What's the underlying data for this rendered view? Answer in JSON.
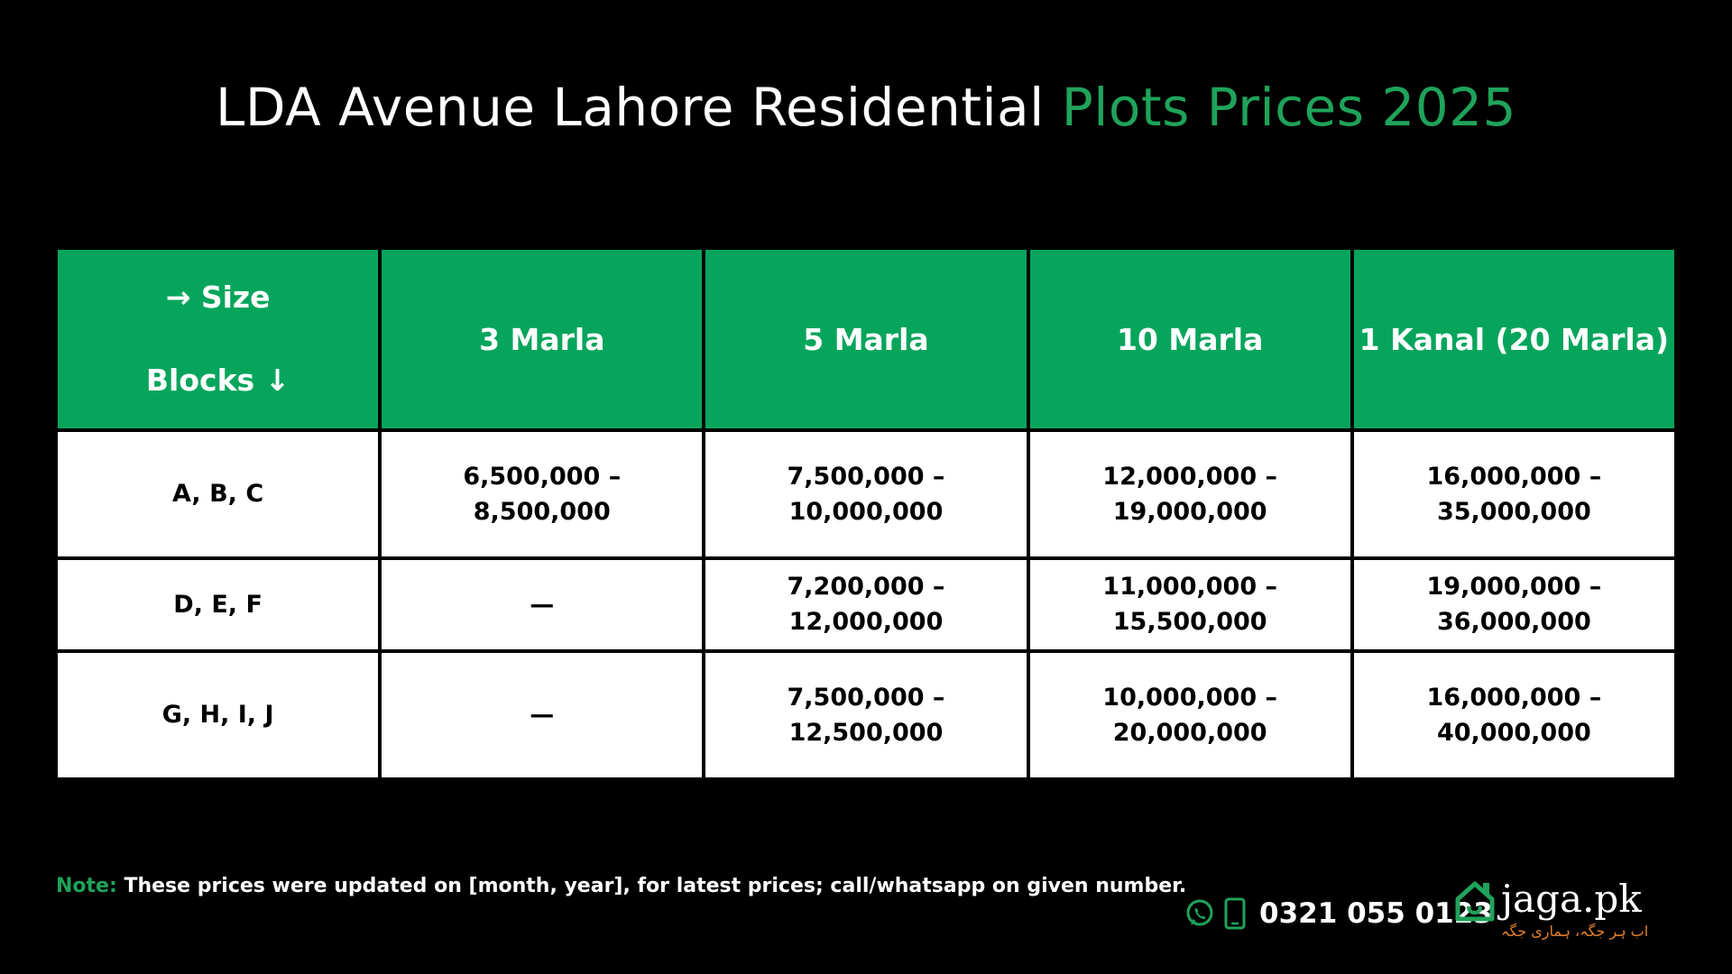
{
  "title": {
    "main": "LDA Avenue Lahore Residential",
    "highlight": "Plots Prices 2025"
  },
  "table": {
    "corner": {
      "top": "→ Size",
      "bottom": "Blocks ↓"
    },
    "headers": [
      "3 Marla",
      "5 Marla",
      "10 Marla",
      "1 Kanal (20 Marla)"
    ],
    "rows": [
      {
        "block": "A, B, C",
        "cells": [
          "6,500,000 – 8,500,000",
          "7,500,000 – 10,000,000",
          "12,000,000 – 19,000,000",
          "16,000,000 – 35,000,000"
        ]
      },
      {
        "block": "D, E, F",
        "cells": [
          "—",
          "7,200,000 – 12,000,000",
          "11,000,000 – 15,500,000",
          "19,000,000 – 36,000,000"
        ]
      },
      {
        "block": "G, H, I, J",
        "cells": [
          "—",
          "7,500,000 – 12,500,000",
          "10,000,000 – 20,000,000",
          "16,000,000 – 40,000,000"
        ]
      }
    ]
  },
  "note": {
    "label": "Note:",
    "text": "These prices were updated on [month, year], for latest prices; call/whatsapp on given number."
  },
  "contact": {
    "phone": "0321 055 0123",
    "icons": [
      "whatsapp-icon",
      "mobile-phone-icon"
    ]
  },
  "brand": {
    "name": "jaga.pk",
    "tagline": "اب ہر جگہ، ہماری جگہ"
  },
  "colors": {
    "background": "#000000",
    "accent": "#07a55c",
    "title_highlight": "#1fa35a",
    "tagline": "#e0802a"
  }
}
